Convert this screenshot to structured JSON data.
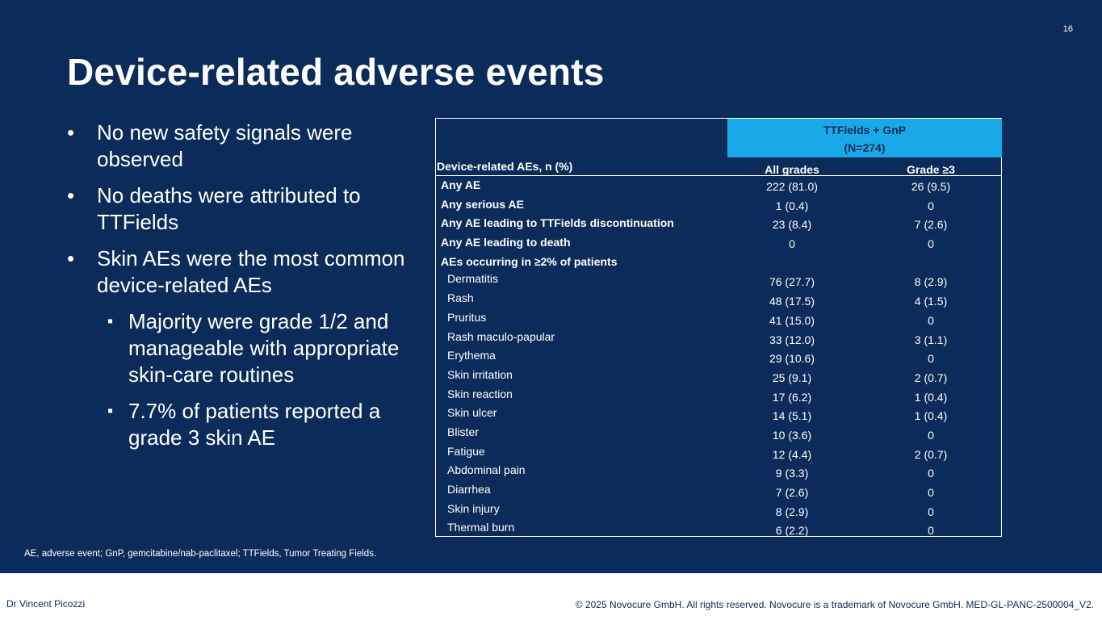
{
  "slide": {
    "page_number": "16",
    "title": "Device-related adverse events",
    "bullets": [
      "No new safety signals were observed",
      "No deaths were attributed to TTFields",
      "Skin AEs were the most common device-related AEs"
    ],
    "sub_bullets": [
      "Majority were grade 1/2 and manageable with appropriate skin-care routines",
      "7.7% of patients reported a grade 3 skin AE"
    ],
    "footnote": "AE, adverse event; GnP, gemcitabine/nab-paclitaxel; TTFields, Tumor Treating Fields."
  },
  "table": {
    "group_header_line1": "TTFields + GnP",
    "group_header_line2": "(N=274)",
    "col0_header": "Device-related AEs, n (%)",
    "col1_header": "All grades",
    "col2_header": "Grade ≥3",
    "rows": [
      {
        "label": "Any AE",
        "all": "222 (81.0)",
        "g3": "26 (9.5)"
      },
      {
        "label": "Any serious AE",
        "all": "1 (0.4)",
        "g3": "0"
      },
      {
        "label": "Any AE leading to TTFields discontinuation",
        "all": "23 (8.4)",
        "g3": "7 (2.6)"
      },
      {
        "label": "Any AE leading to death",
        "all": "0",
        "g3": "0"
      },
      {
        "label": "AEs occurring in ≥2% of patients",
        "all": "",
        "g3": ""
      },
      {
        "label": "Dermatitis",
        "all": "76 (27.7)",
        "g3": "8 (2.9)"
      },
      {
        "label": "Rash",
        "all": "48 (17.5)",
        "g3": "4 (1.5)"
      },
      {
        "label": "Pruritus",
        "all": "41 (15.0)",
        "g3": "0"
      },
      {
        "label": "Rash maculo-papular",
        "all": "33 (12.0)",
        "g3": "3 (1.1)"
      },
      {
        "label": "Erythema",
        "all": "29 (10.6)",
        "g3": "0"
      },
      {
        "label": "Skin irritation",
        "all": "25 (9.1)",
        "g3": "2 (0.7)"
      },
      {
        "label": "Skin reaction",
        "all": "17 (6.2)",
        "g3": "1 (0.4)"
      },
      {
        "label": "Skin ulcer",
        "all": "14 (5.1)",
        "g3": "1 (0.4)"
      },
      {
        "label": "Blister",
        "all": "10 (3.6)",
        "g3": "0"
      },
      {
        "label": "Fatigue",
        "all": "12 (4.4)",
        "g3": "2 (0.7)"
      },
      {
        "label": "Abdominal pain",
        "all": "9 (3.3)",
        "g3": "0"
      },
      {
        "label": "Diarrhea",
        "all": "7 (2.6)",
        "g3": "0"
      },
      {
        "label": "Skin injury",
        "all": "8 (2.9)",
        "g3": "0"
      },
      {
        "label": "Thermal burn",
        "all": "6 (2.2)",
        "g3": "0"
      }
    ]
  },
  "footer": {
    "presenter": "Dr Vincent Picozzi",
    "copyright": "© 2025 Novocure GmbH. All rights reserved. Novocure is a trademark of Novocure GmbH. MED-GL-PANC-2500004_V2."
  },
  "colors": {
    "background": "#0b2c5b",
    "header_fill": "#1aa9e8",
    "text": "#ffffff"
  }
}
